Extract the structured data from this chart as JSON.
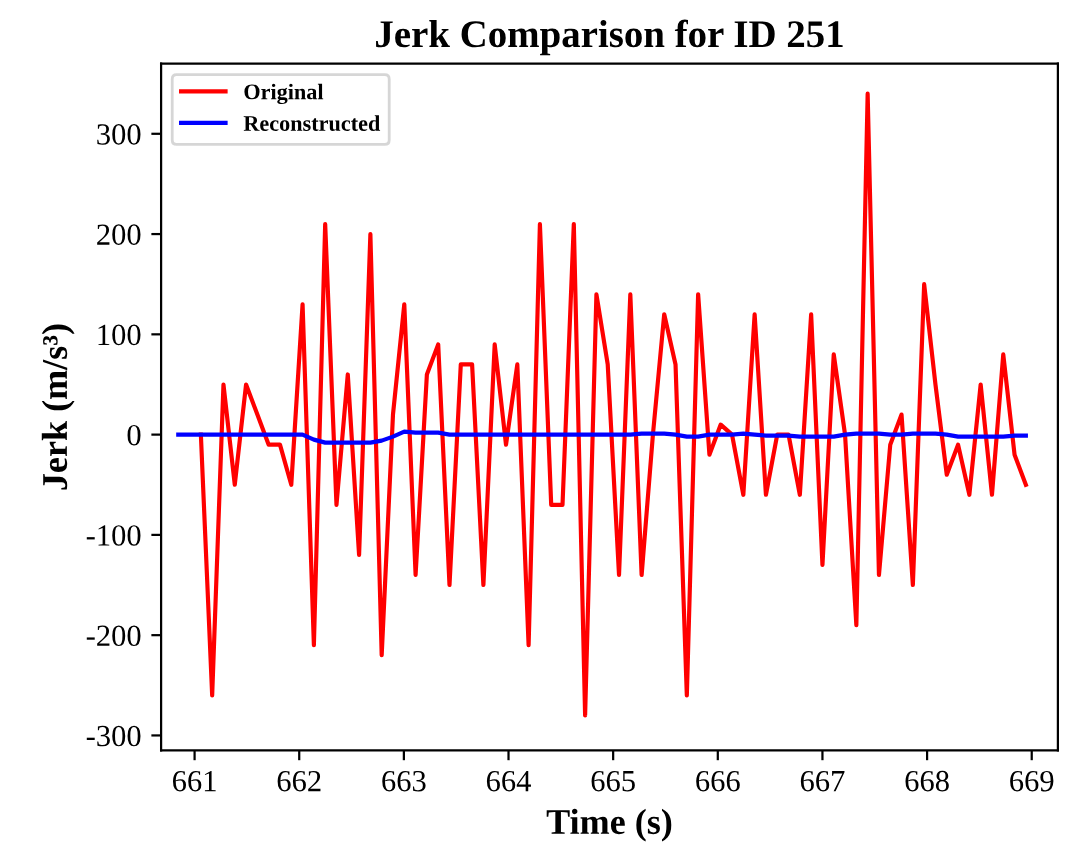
{
  "chart_data": {
    "type": "line",
    "title": "Jerk Comparison for ID 251",
    "xlabel": "Time (s)",
    "ylabel": "Jerk (m/s³)",
    "x": [
      661.06,
      661.168,
      661.276,
      661.384,
      661.492,
      661.6,
      661.708,
      661.816,
      661.924,
      662.032,
      662.14,
      662.248,
      662.356,
      662.464,
      662.572,
      662.68,
      662.788,
      662.896,
      663.004,
      663.112,
      663.22,
      663.328,
      663.436,
      663.544,
      663.652,
      663.76,
      663.868,
      663.976,
      664.084,
      664.192,
      664.3,
      664.408,
      664.516,
      664.624,
      664.732,
      664.84,
      664.948,
      665.056,
      665.164,
      665.272,
      665.38,
      665.488,
      665.596,
      665.704,
      665.812,
      665.92,
      666.028,
      666.136,
      666.244,
      666.352,
      666.46,
      666.568,
      666.676,
      666.784,
      666.892,
      667.0,
      667.108,
      667.216,
      667.324,
      667.432,
      667.54,
      667.648,
      667.756,
      667.864,
      667.972,
      668.08,
      668.188,
      668.296,
      668.404,
      668.512,
      668.62,
      668.728,
      668.836,
      668.944
    ],
    "series": [
      {
        "name": "Original",
        "color": "#ff0000",
        "values": [
          0,
          -260,
          50,
          -50,
          50,
          20,
          -10,
          -10,
          -50,
          130,
          -210,
          210,
          -70,
          60,
          -120,
          200,
          -220,
          20,
          130,
          -140,
          60,
          90,
          -150,
          70,
          70,
          -150,
          90,
          -10,
          70,
          -210,
          210,
          -70,
          -70,
          210,
          -280,
          140,
          70,
          -140,
          140,
          -140,
          0,
          120,
          70,
          -260,
          140,
          -20,
          10,
          0,
          -60,
          120,
          -60,
          0,
          0,
          -60,
          120,
          -130,
          80,
          0,
          -190,
          340,
          -140,
          -10,
          20,
          -150,
          150,
          50,
          -40,
          -10,
          -60,
          50,
          -60,
          80,
          -20,
          -50
        ]
      },
      {
        "name": "Reconstructed",
        "color": "#0000ff",
        "x": [
          660.844,
          660.952,
          661.06,
          661.168,
          661.276,
          661.384,
          661.492,
          661.6,
          661.708,
          661.816,
          661.924,
          662.032,
          662.14,
          662.248,
          662.356,
          662.464,
          662.572,
          662.68,
          662.788,
          662.896,
          663.004,
          663.112,
          663.22,
          663.328,
          663.436,
          663.544,
          663.652,
          663.76,
          663.868,
          663.976,
          664.084,
          664.192,
          664.3,
          664.408,
          664.516,
          664.624,
          664.732,
          664.84,
          664.948,
          665.056,
          665.164,
          665.272,
          665.38,
          665.488,
          665.596,
          665.704,
          665.812,
          665.92,
          666.028,
          666.136,
          666.244,
          666.352,
          666.46,
          666.568,
          666.676,
          666.784,
          666.892,
          667.0,
          667.108,
          667.216,
          667.324,
          667.432,
          667.54,
          667.648,
          667.756,
          667.864,
          667.972,
          668.08,
          668.188,
          668.296,
          668.404,
          668.512,
          668.62,
          668.728,
          668.836,
          668.944
        ],
        "values": [
          0,
          0,
          0,
          0,
          0,
          0,
          0,
          0,
          0,
          0,
          0,
          0,
          -5,
          -8,
          -8,
          -8,
          -8,
          -8,
          -6,
          -2,
          3,
          2,
          2,
          2,
          0,
          0,
          0,
          0,
          0,
          0,
          0,
          0,
          0,
          0,
          0,
          0,
          0,
          0,
          0,
          0,
          0,
          1,
          1,
          1,
          0,
          -2,
          -2,
          0,
          0,
          0,
          1,
          0,
          -1,
          -1,
          -1,
          -2,
          -2,
          -2,
          -2,
          0,
          1,
          1,
          1,
          0,
          0,
          1,
          1,
          1,
          0,
          -2,
          -2,
          -2,
          -2,
          -2,
          -1,
          -1
        ]
      }
    ],
    "xlim": [
      660.68,
      669.25
    ],
    "xticks": [
      661,
      662,
      663,
      664,
      665,
      666,
      667,
      668,
      669
    ],
    "ylim": [
      -315,
      370
    ],
    "yticks": [
      -300,
      -200,
      -100,
      0,
      100,
      200,
      300
    ],
    "grid": false,
    "legend": "top left"
  }
}
